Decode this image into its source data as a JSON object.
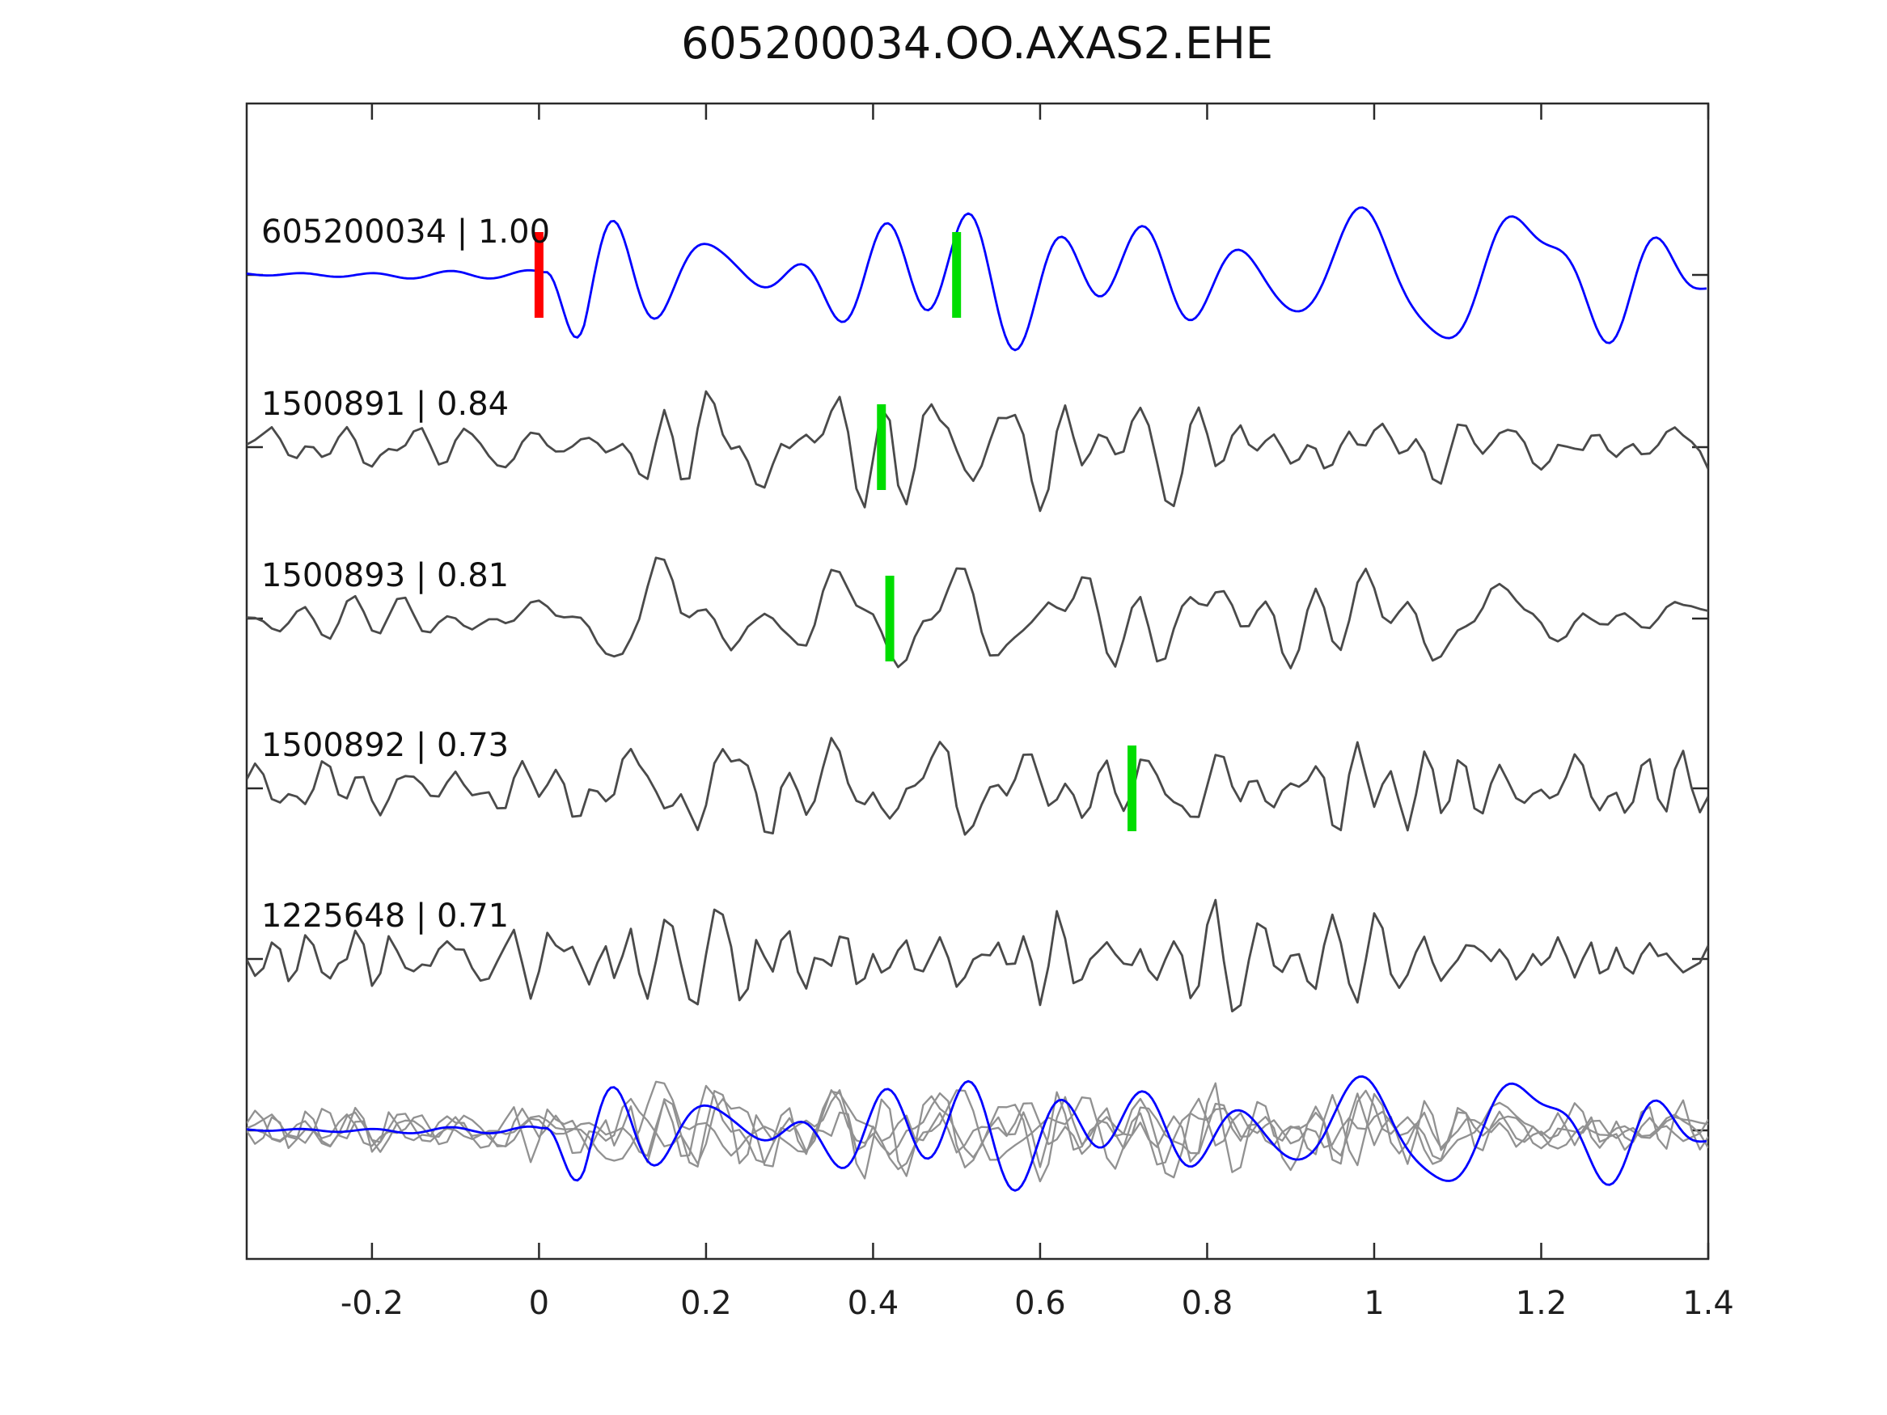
{
  "title": "605200034.OO.AXAS2.EHE",
  "chart_data": {
    "type": "line",
    "subtype": "seismogram-correlation-stack",
    "title": "605200034.OO.AXAS2.EHE",
    "xlabel": "",
    "ylabel": "",
    "xlim": [
      -0.35,
      1.4
    ],
    "x_ticks": [
      -0.2,
      0,
      0.2,
      0.4,
      0.6,
      0.8,
      1,
      1.2,
      1.4
    ],
    "x_tick_labels": [
      "-0.2",
      "0",
      "0.2",
      "0.4",
      "0.6",
      "0.8",
      "1",
      "1.2",
      "1.4"
    ],
    "grid": false,
    "legend": null,
    "colors": {
      "master_trace": "#0000ff",
      "match_trace": "#4a4a4a",
      "overlay_trace": "#919191",
      "pick_master": "#ff0000",
      "pick_match": "#00dd00",
      "axis": "#2a2a2a",
      "tick_label": "#1f1f1f",
      "background": "#ffffff"
    },
    "rows": [
      {
        "kind": "trace",
        "id": "605200034",
        "similarity": "1.00",
        "label": "605200034 | 1.00",
        "color_role": "master_trace",
        "picks": [
          {
            "t": 0.0,
            "color_role": "pick_master"
          },
          {
            "t": 0.5,
            "color_role": "pick_match"
          }
        ]
      },
      {
        "kind": "trace",
        "id": "1500891",
        "similarity": "0.84",
        "label": "1500891 | 0.84",
        "color_role": "match_trace",
        "picks": [
          {
            "t": 0.41,
            "color_role": "pick_match"
          }
        ]
      },
      {
        "kind": "trace",
        "id": "1500893",
        "similarity": "0.81",
        "label": "1500893 | 0.81",
        "color_role": "match_trace",
        "picks": [
          {
            "t": 0.42,
            "color_role": "pick_match"
          }
        ]
      },
      {
        "kind": "trace",
        "id": "1500892",
        "similarity": "0.73",
        "label": "1500892 | 0.73",
        "color_role": "match_trace",
        "picks": [
          {
            "t": 0.71,
            "color_role": "pick_match"
          }
        ]
      },
      {
        "kind": "trace",
        "id": "1225648",
        "similarity": "0.71",
        "label": "1225648 | 0.71",
        "color_role": "match_trace",
        "picks": []
      },
      {
        "kind": "overlay",
        "label": "",
        "includes": [
          "1500891",
          "1500893",
          "1500892",
          "1225648",
          "605200034"
        ],
        "picks": []
      }
    ],
    "waveform_gen": {
      "note": "waveform shapes procedurally approximated from screenshot character",
      "per_trace": [
        {
          "seed": 42,
          "nfreq": 16,
          "fmin": 4.0,
          "fmax": 13.0,
          "amp": 56,
          "dt": 0.004,
          "jitter": 0,
          "env": {
            "pre": 0.055,
            "onset": 0.005,
            "rise": 0.05,
            "tail_t": 2.0,
            "tail": 1.0
          }
        },
        {
          "seed": 7,
          "nfreq": 18,
          "fmin": 6.0,
          "fmax": 24.0,
          "amp": 34,
          "dt": 0.01,
          "jitter": 5,
          "env": {
            "pre": 0.42,
            "onset": 0.03,
            "rise": 0.12,
            "tail_t": 0.72,
            "tail": 0.62
          }
        },
        {
          "seed": 19,
          "nfreq": 16,
          "fmin": 5.0,
          "fmax": 20.0,
          "amp": 36,
          "dt": 0.01,
          "jitter": 4,
          "env": {
            "pre": 0.28,
            "onset": 0.04,
            "rise": 0.1,
            "tail_t": 0.7,
            "tail": 0.55
          }
        },
        {
          "seed": 65,
          "nfreq": 18,
          "fmin": 6.0,
          "fmax": 26.0,
          "amp": 34,
          "dt": 0.01,
          "jitter": 5,
          "env": {
            "pre": 0.45,
            "onset": 0.02,
            "rise": 0.1,
            "tail_t": 0.75,
            "tail": 0.66
          }
        },
        {
          "seed": 90,
          "nfreq": 20,
          "fmin": 8.0,
          "fmax": 32.0,
          "amp": 27,
          "dt": 0.01,
          "jitter": 8,
          "env": {
            "pre": 0.85,
            "onset": 0.0,
            "rise": 0.02,
            "tail_t": 2.0,
            "tail": 1.0
          }
        }
      ],
      "overlay_scale": 0.8
    }
  }
}
